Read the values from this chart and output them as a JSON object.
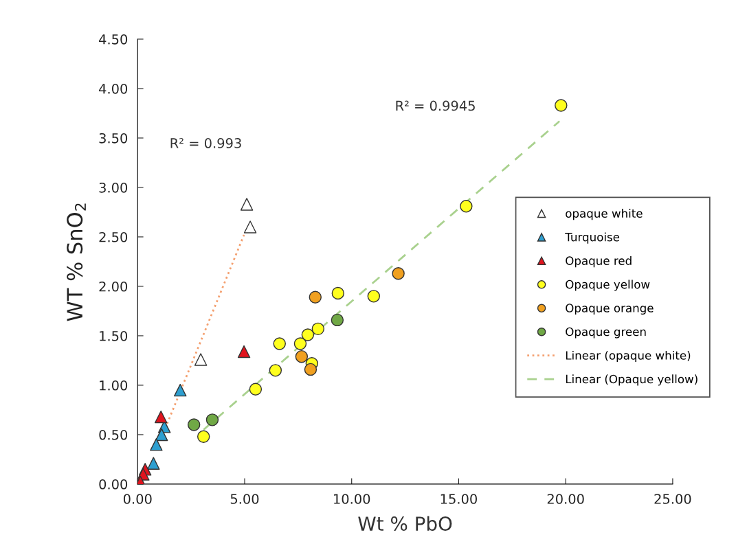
{
  "chart_data": {
    "type": "scatter",
    "xlabel": "Wt % PbO",
    "ylabel": "WT % SnO$_{2}$",
    "xlim": [
      0,
      25
    ],
    "ylim": [
      0,
      4.5
    ],
    "xticks": [
      {
        "value": 0,
        "label": "0.00"
      },
      {
        "value": 5,
        "label": "5.00"
      },
      {
        "value": 10,
        "label": "10.00"
      },
      {
        "value": 15,
        "label": "15.00"
      },
      {
        "value": 20,
        "label": "20.00"
      },
      {
        "value": 25,
        "label": "25.00"
      }
    ],
    "yticks": [
      {
        "value": 0,
        "label": "0.00"
      },
      {
        "value": 0.5,
        "label": "0.50"
      },
      {
        "value": 1,
        "label": "1.00"
      },
      {
        "value": 1.5,
        "label": "1.50"
      },
      {
        "value": 2,
        "label": "2.00"
      },
      {
        "value": 2.5,
        "label": "2.50"
      },
      {
        "value": 3,
        "label": "3.00"
      },
      {
        "value": 3.5,
        "label": "3.50"
      },
      {
        "value": 4,
        "label": "4.00"
      },
      {
        "value": 4.5,
        "label": "4.50"
      }
    ],
    "grid": false,
    "legend": "right",
    "annotations": [
      "R² = 0.993",
      "R² = 0.9945"
    ],
    "series": [
      {
        "name": "opaque white",
        "marker": "triangle",
        "color": "#ffffff",
        "x": [
          5.1,
          5.26,
          2.95
        ],
        "values": [
          2.83,
          2.6,
          1.26
        ]
      },
      {
        "name": "Turquoise",
        "marker": "triangle",
        "color": "#2e9fd0",
        "x": [
          1.99,
          1.25,
          1.12,
          0.87,
          0.74
        ],
        "values": [
          0.95,
          0.58,
          0.5,
          0.4,
          0.21
        ]
      },
      {
        "name": "Opaque red",
        "marker": "triangle",
        "color": "#e0141e",
        "x": [
          1.09,
          0.35,
          0.26,
          0.13,
          4.97
        ],
        "values": [
          0.68,
          0.15,
          0.1,
          0.02,
          1.34
        ]
      },
      {
        "name": "Opaque yellow",
        "marker": "circle",
        "color": "#ffff1e",
        "x": [
          3.08,
          5.51,
          9.36,
          11.03,
          8.43,
          7.95,
          6.63,
          7.6,
          8.14,
          6.44,
          19.78,
          15.35
        ],
        "values": [
          0.48,
          0.96,
          1.93,
          1.9,
          1.57,
          1.51,
          1.42,
          1.42,
          1.22,
          1.15,
          3.83,
          2.81
        ]
      },
      {
        "name": "Opaque orange",
        "marker": "circle",
        "color": "#f0a020",
        "x": [
          8.3,
          7.66,
          8.08,
          12.18
        ],
        "values": [
          1.89,
          1.29,
          1.16,
          2.13
        ]
      },
      {
        "name": "Opaque green",
        "marker": "circle",
        "color": "#70a845",
        "x": [
          2.63,
          3.49,
          9.33
        ],
        "values": [
          0.6,
          0.65,
          1.66
        ]
      },
      {
        "name": "Linear (opaque white)",
        "type": "line",
        "line_style": "dotted",
        "color": "#f4a070",
        "x": [
          1.38,
          4.97
        ],
        "values": [
          0.61,
          2.52
        ]
      },
      {
        "name": "Linear (Opaque yellow)",
        "type": "line",
        "line_style": "dashed",
        "color": "#a9d18e",
        "x": [
          3.08,
          19.71
        ],
        "values": [
          0.55,
          3.67
        ]
      }
    ]
  }
}
